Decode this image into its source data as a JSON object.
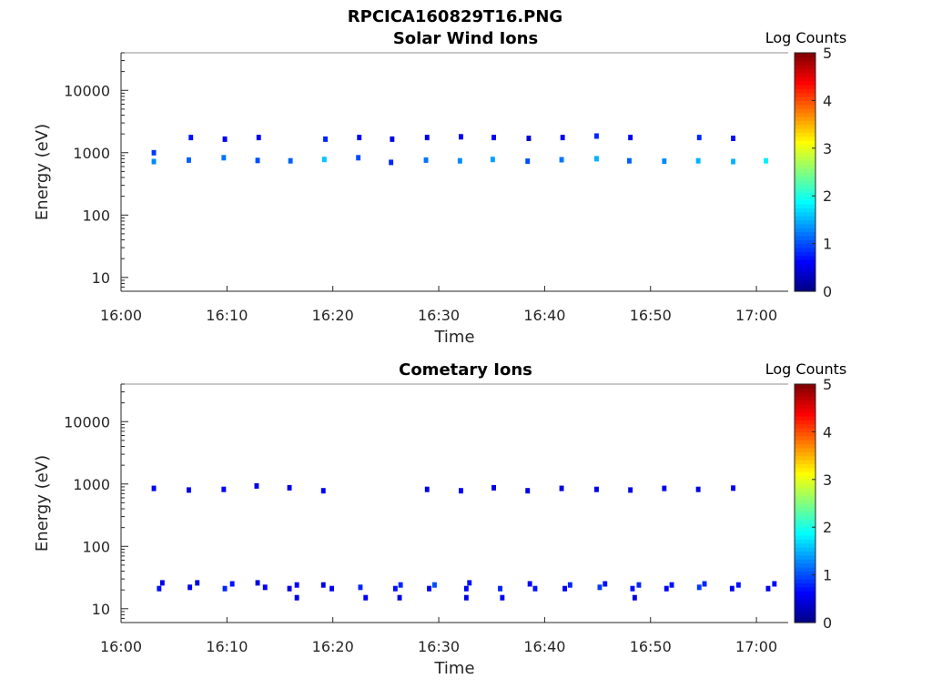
{
  "figure_title": "RPCICA160829T16.PNG",
  "chart_data": [
    {
      "type": "heatmap",
      "title": "Solar Wind Ions",
      "xlabel": "Time",
      "ylabel": "Energy (eV)",
      "x_ticks": [
        "16:00",
        "16:10",
        "16:20",
        "16:30",
        "16:40",
        "16:50",
        "17:00"
      ],
      "xlim_minutes": [
        0,
        63
      ],
      "y_ticks": [
        "10",
        "100",
        "1000",
        "10000"
      ],
      "y_scale": "log",
      "ylim": [
        6,
        40000
      ],
      "colorbar": {
        "label": "Log Counts",
        "min": 0,
        "max": 5,
        "ticks": [
          "0",
          "1",
          "2",
          "3",
          "4",
          "5"
        ],
        "colormap": "jet"
      },
      "cells": [
        {
          "t": 3.1,
          "e": 720,
          "v": 1.3
        },
        {
          "t": 3.1,
          "e": 1000,
          "v": 0.9
        },
        {
          "t": 6.4,
          "e": 760,
          "v": 1.1
        },
        {
          "t": 6.6,
          "e": 1750,
          "v": 0.7
        },
        {
          "t": 9.7,
          "e": 830,
          "v": 1.2
        },
        {
          "t": 9.8,
          "e": 1650,
          "v": 0.6
        },
        {
          "t": 12.9,
          "e": 750,
          "v": 1.0
        },
        {
          "t": 13.0,
          "e": 1750,
          "v": 0.6
        },
        {
          "t": 16.0,
          "e": 740,
          "v": 1.1
        },
        {
          "t": 19.2,
          "e": 780,
          "v": 1.6
        },
        {
          "t": 19.3,
          "e": 1650,
          "v": 0.8
        },
        {
          "t": 22.4,
          "e": 830,
          "v": 1.0
        },
        {
          "t": 22.5,
          "e": 1750,
          "v": 0.6
        },
        {
          "t": 25.5,
          "e": 700,
          "v": 0.8
        },
        {
          "t": 25.6,
          "e": 1650,
          "v": 0.5
        },
        {
          "t": 28.8,
          "e": 760,
          "v": 1.2
        },
        {
          "t": 28.9,
          "e": 1750,
          "v": 0.5
        },
        {
          "t": 32.0,
          "e": 740,
          "v": 1.3
        },
        {
          "t": 32.1,
          "e": 1800,
          "v": 0.6
        },
        {
          "t": 35.1,
          "e": 780,
          "v": 1.4
        },
        {
          "t": 35.2,
          "e": 1750,
          "v": 0.6
        },
        {
          "t": 38.4,
          "e": 730,
          "v": 1.0
        },
        {
          "t": 38.5,
          "e": 1700,
          "v": 0.4
        },
        {
          "t": 41.6,
          "e": 770,
          "v": 1.2
        },
        {
          "t": 41.7,
          "e": 1750,
          "v": 0.6
        },
        {
          "t": 44.9,
          "e": 800,
          "v": 1.5
        },
        {
          "t": 44.9,
          "e": 1850,
          "v": 0.8
        },
        {
          "t": 48.0,
          "e": 740,
          "v": 1.1
        },
        {
          "t": 48.1,
          "e": 1750,
          "v": 0.6
        },
        {
          "t": 51.3,
          "e": 730,
          "v": 1.3
        },
        {
          "t": 54.5,
          "e": 740,
          "v": 1.5
        },
        {
          "t": 54.6,
          "e": 1750,
          "v": 0.8
        },
        {
          "t": 57.8,
          "e": 720,
          "v": 1.5
        },
        {
          "t": 57.8,
          "e": 1700,
          "v": 0.7
        },
        {
          "t": 60.9,
          "e": 740,
          "v": 1.8
        }
      ]
    },
    {
      "type": "heatmap",
      "title": "Cometary Ions",
      "xlabel": "Time",
      "ylabel": "Energy (eV)",
      "x_ticks": [
        "16:00",
        "16:10",
        "16:20",
        "16:30",
        "16:40",
        "16:50",
        "17:00"
      ],
      "xlim_minutes": [
        0,
        63
      ],
      "y_ticks": [
        "10",
        "100",
        "1000",
        "10000"
      ],
      "y_scale": "log",
      "ylim": [
        6,
        40000
      ],
      "colorbar": {
        "label": "Log Counts",
        "min": 0,
        "max": 5,
        "ticks": [
          "0",
          "1",
          "2",
          "3",
          "4",
          "5"
        ],
        "colormap": "jet"
      },
      "cells": [
        {
          "t": 3.1,
          "e": 850,
          "v": 0.6
        },
        {
          "t": 6.4,
          "e": 800,
          "v": 0.5
        },
        {
          "t": 9.7,
          "e": 820,
          "v": 0.6
        },
        {
          "t": 12.8,
          "e": 930,
          "v": 0.5
        },
        {
          "t": 15.9,
          "e": 870,
          "v": 0.5
        },
        {
          "t": 19.1,
          "e": 780,
          "v": 0.6
        },
        {
          "t": 28.9,
          "e": 820,
          "v": 0.5
        },
        {
          "t": 32.1,
          "e": 780,
          "v": 0.6
        },
        {
          "t": 35.2,
          "e": 870,
          "v": 0.5
        },
        {
          "t": 38.4,
          "e": 780,
          "v": 0.5
        },
        {
          "t": 41.6,
          "e": 850,
          "v": 0.5
        },
        {
          "t": 44.9,
          "e": 820,
          "v": 0.5
        },
        {
          "t": 48.1,
          "e": 800,
          "v": 0.5
        },
        {
          "t": 51.3,
          "e": 850,
          "v": 0.5
        },
        {
          "t": 54.5,
          "e": 820,
          "v": 0.5
        },
        {
          "t": 57.8,
          "e": 860,
          "v": 0.6
        },
        {
          "t": 3.6,
          "e": 21,
          "v": 0.7
        },
        {
          "t": 3.9,
          "e": 26,
          "v": 0.5
        },
        {
          "t": 6.5,
          "e": 22,
          "v": 0.6
        },
        {
          "t": 7.2,
          "e": 26,
          "v": 0.5
        },
        {
          "t": 9.8,
          "e": 21,
          "v": 0.8
        },
        {
          "t": 10.5,
          "e": 25,
          "v": 0.7
        },
        {
          "t": 12.9,
          "e": 26,
          "v": 0.5
        },
        {
          "t": 13.6,
          "e": 22,
          "v": 0.6
        },
        {
          "t": 15.9,
          "e": 21,
          "v": 0.5
        },
        {
          "t": 16.6,
          "e": 24,
          "v": 0.6
        },
        {
          "t": 16.6,
          "e": 15,
          "v": 0.5
        },
        {
          "t": 19.1,
          "e": 24,
          "v": 0.5
        },
        {
          "t": 19.9,
          "e": 21,
          "v": 0.6
        },
        {
          "t": 22.6,
          "e": 22,
          "v": 0.8
        },
        {
          "t": 23.1,
          "e": 15,
          "v": 0.6
        },
        {
          "t": 25.9,
          "e": 21,
          "v": 0.7
        },
        {
          "t": 26.4,
          "e": 24,
          "v": 0.8
        },
        {
          "t": 26.3,
          "e": 15,
          "v": 0.5
        },
        {
          "t": 29.1,
          "e": 21,
          "v": 0.6
        },
        {
          "t": 29.6,
          "e": 24,
          "v": 1.0
        },
        {
          "t": 32.6,
          "e": 21,
          "v": 0.6
        },
        {
          "t": 32.9,
          "e": 26,
          "v": 0.7
        },
        {
          "t": 32.6,
          "e": 15,
          "v": 0.5
        },
        {
          "t": 35.8,
          "e": 21,
          "v": 0.8
        },
        {
          "t": 36.0,
          "e": 15,
          "v": 0.6
        },
        {
          "t": 38.6,
          "e": 25,
          "v": 0.6
        },
        {
          "t": 39.1,
          "e": 21,
          "v": 0.7
        },
        {
          "t": 41.9,
          "e": 21,
          "v": 0.6
        },
        {
          "t": 42.4,
          "e": 24,
          "v": 0.8
        },
        {
          "t": 45.2,
          "e": 22,
          "v": 0.9
        },
        {
          "t": 45.7,
          "e": 25,
          "v": 0.7
        },
        {
          "t": 48.3,
          "e": 21,
          "v": 0.7
        },
        {
          "t": 48.9,
          "e": 24,
          "v": 0.8
        },
        {
          "t": 48.5,
          "e": 15,
          "v": 0.5
        },
        {
          "t": 51.5,
          "e": 21,
          "v": 0.6
        },
        {
          "t": 52.0,
          "e": 24,
          "v": 0.7
        },
        {
          "t": 54.6,
          "e": 22,
          "v": 0.9
        },
        {
          "t": 55.1,
          "e": 25,
          "v": 0.8
        },
        {
          "t": 57.7,
          "e": 21,
          "v": 0.6
        },
        {
          "t": 58.3,
          "e": 24,
          "v": 0.7
        },
        {
          "t": 61.1,
          "e": 21,
          "v": 0.6
        },
        {
          "t": 61.7,
          "e": 25,
          "v": 0.6
        }
      ]
    }
  ]
}
